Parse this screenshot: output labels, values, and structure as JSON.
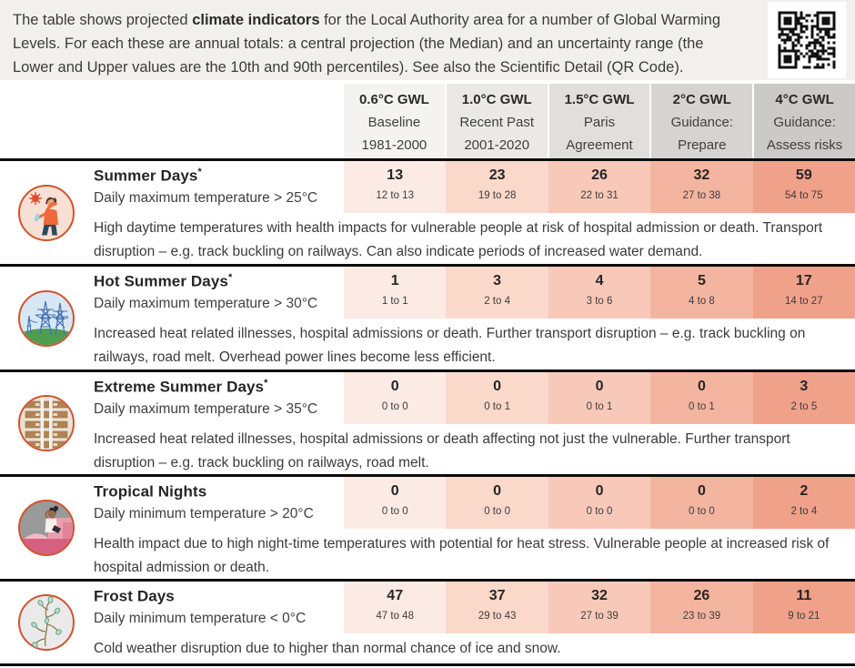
{
  "intro": {
    "text_before": "The table shows projected ",
    "bold_text": "climate indicators",
    "text_after": " for the Local Authority area for a number of Global Warming Levels. For each these are annual totals: a central projection (the Median) and an uncertainty range (the Lower and Upper values are the 10th and 90th percentiles). See also the Scientific Detail (QR Code)."
  },
  "header": {
    "columns": [
      {
        "gwl": "0.6°C GWL",
        "line2": "Baseline",
        "line3": "1981-2000",
        "bg": "#f4f3f2"
      },
      {
        "gwl": "1.0°C GWL",
        "line2": "Recent Past",
        "line3": "2001-2020",
        "bg": "#eae9e8"
      },
      {
        "gwl": "1.5°C GWL",
        "line2": "Paris",
        "line3": "Agreement",
        "bg": "#e0dfde"
      },
      {
        "gwl": "2°C GWL",
        "line2": "Guidance:",
        "line3": "Prepare",
        "bg": "#d5d4d3"
      },
      {
        "gwl": "4°C GWL",
        "line2": "Guidance:",
        "line3": "Assess risks",
        "bg": "#cbcac9"
      }
    ]
  },
  "cell_colors": [
    "#fcebe4",
    "#fad8ca",
    "#f8c9b8",
    "#f4b5a0",
    "#f0a189"
  ],
  "rows": [
    {
      "title": "Summer Days",
      "title_suffix": "*",
      "subtitle": "Daily maximum temperature > 25°C",
      "icon": "heat-person-icon",
      "cells": [
        {
          "value": "13",
          "range": "12 to 13"
        },
        {
          "value": "23",
          "range": "19 to 28"
        },
        {
          "value": "26",
          "range": "22 to 31"
        },
        {
          "value": "32",
          "range": "27 to 38"
        },
        {
          "value": "59",
          "range": "54 to 75"
        }
      ],
      "description": "High daytime temperatures with health impacts for vulnerable people at risk of hospital admission or death. Transport disruption – e.g. track buckling on railways. Can also indicate periods of increased water demand."
    },
    {
      "title": "Hot Summer Days",
      "title_suffix": "*",
      "subtitle": "Daily maximum temperature > 30°C",
      "icon": "power-pylons-icon",
      "cells": [
        {
          "value": "1",
          "range": "1 to 1"
        },
        {
          "value": "3",
          "range": "2 to 4"
        },
        {
          "value": "4",
          "range": "3 to 6"
        },
        {
          "value": "5",
          "range": "4 to 8"
        },
        {
          "value": "17",
          "range": "14 to 27"
        }
      ],
      "description": "Increased heat related illnesses, hospital admissions or death. Further transport disruption – e.g. track buckling on railways, road melt. Overhead power lines become less efficient."
    },
    {
      "title": "Extreme Summer Days",
      "title_suffix": "*",
      "subtitle": "Daily maximum temperature > 35°C",
      "icon": "railway-track-icon",
      "cells": [
        {
          "value": "0",
          "range": "0 to 0"
        },
        {
          "value": "0",
          "range": "0 to 1"
        },
        {
          "value": "0",
          "range": "0 to 1"
        },
        {
          "value": "0",
          "range": "0 to 1"
        },
        {
          "value": "3",
          "range": "2 to 5"
        }
      ],
      "description": "Increased heat related illnesses, hospital admissions or death affecting not just the vulnerable. Further transport disruption – e.g. track buckling on railways, road melt."
    },
    {
      "title": "Tropical Nights",
      "title_suffix": "",
      "subtitle": "Daily minimum temperature > 20°C",
      "icon": "night-heat-icon",
      "cells": [
        {
          "value": "0",
          "range": "0 to 0"
        },
        {
          "value": "0",
          "range": "0 to 0"
        },
        {
          "value": "0",
          "range": "0 to 0"
        },
        {
          "value": "0",
          "range": "0 to 0"
        },
        {
          "value": "2",
          "range": "2 to 4"
        }
      ],
      "description": "Health impact due to high night-time temperatures with potential for heat stress. Vulnerable people at increased risk of hospital admission or death."
    },
    {
      "title": "Frost Days",
      "title_suffix": "",
      "subtitle": "Daily minimum temperature < 0°C",
      "icon": "frost-plant-icon",
      "cells": [
        {
          "value": "47",
          "range": "47 to 48"
        },
        {
          "value": "37",
          "range": "29 to 43"
        },
        {
          "value": "32",
          "range": "27 to 39"
        },
        {
          "value": "26",
          "range": "23 to 39"
        },
        {
          "value": "11",
          "range": "9 to 21"
        }
      ],
      "description": "Cold weather disruption due to higher than normal chance of ice and snow."
    }
  ],
  "chart_data": {
    "type": "table",
    "title": "Projected climate indicators by Global Warming Level (annual totals)",
    "categories": [
      "0.6°C GWL Baseline 1981-2000",
      "1.0°C GWL Recent Past 2001-2020",
      "1.5°C GWL Paris Agreement",
      "2°C GWL Guidance: Prepare",
      "4°C GWL Guidance: Assess risks"
    ],
    "series": [
      {
        "name": "Summer Days",
        "definition": "Daily maximum temperature > 25°C",
        "median": [
          13,
          23,
          26,
          32,
          59
        ],
        "lower": [
          12,
          19,
          22,
          27,
          54
        ],
        "upper": [
          13,
          28,
          31,
          38,
          75
        ]
      },
      {
        "name": "Hot Summer Days",
        "definition": "Daily maximum temperature > 30°C",
        "median": [
          1,
          3,
          4,
          5,
          17
        ],
        "lower": [
          1,
          2,
          3,
          4,
          14
        ],
        "upper": [
          1,
          4,
          6,
          8,
          27
        ]
      },
      {
        "name": "Extreme Summer Days",
        "definition": "Daily maximum temperature > 35°C",
        "median": [
          0,
          0,
          0,
          0,
          3
        ],
        "lower": [
          0,
          0,
          0,
          0,
          2
        ],
        "upper": [
          0,
          1,
          1,
          1,
          5
        ]
      },
      {
        "name": "Tropical Nights",
        "definition": "Daily minimum temperature > 20°C",
        "median": [
          0,
          0,
          0,
          0,
          2
        ],
        "lower": [
          0,
          0,
          0,
          0,
          2
        ],
        "upper": [
          0,
          0,
          0,
          0,
          4
        ]
      },
      {
        "name": "Frost Days",
        "definition": "Daily minimum temperature < 0°C",
        "median": [
          47,
          37,
          32,
          26,
          11
        ],
        "lower": [
          47,
          29,
          27,
          23,
          9
        ],
        "upper": [
          48,
          43,
          39,
          39,
          21
        ]
      }
    ]
  }
}
